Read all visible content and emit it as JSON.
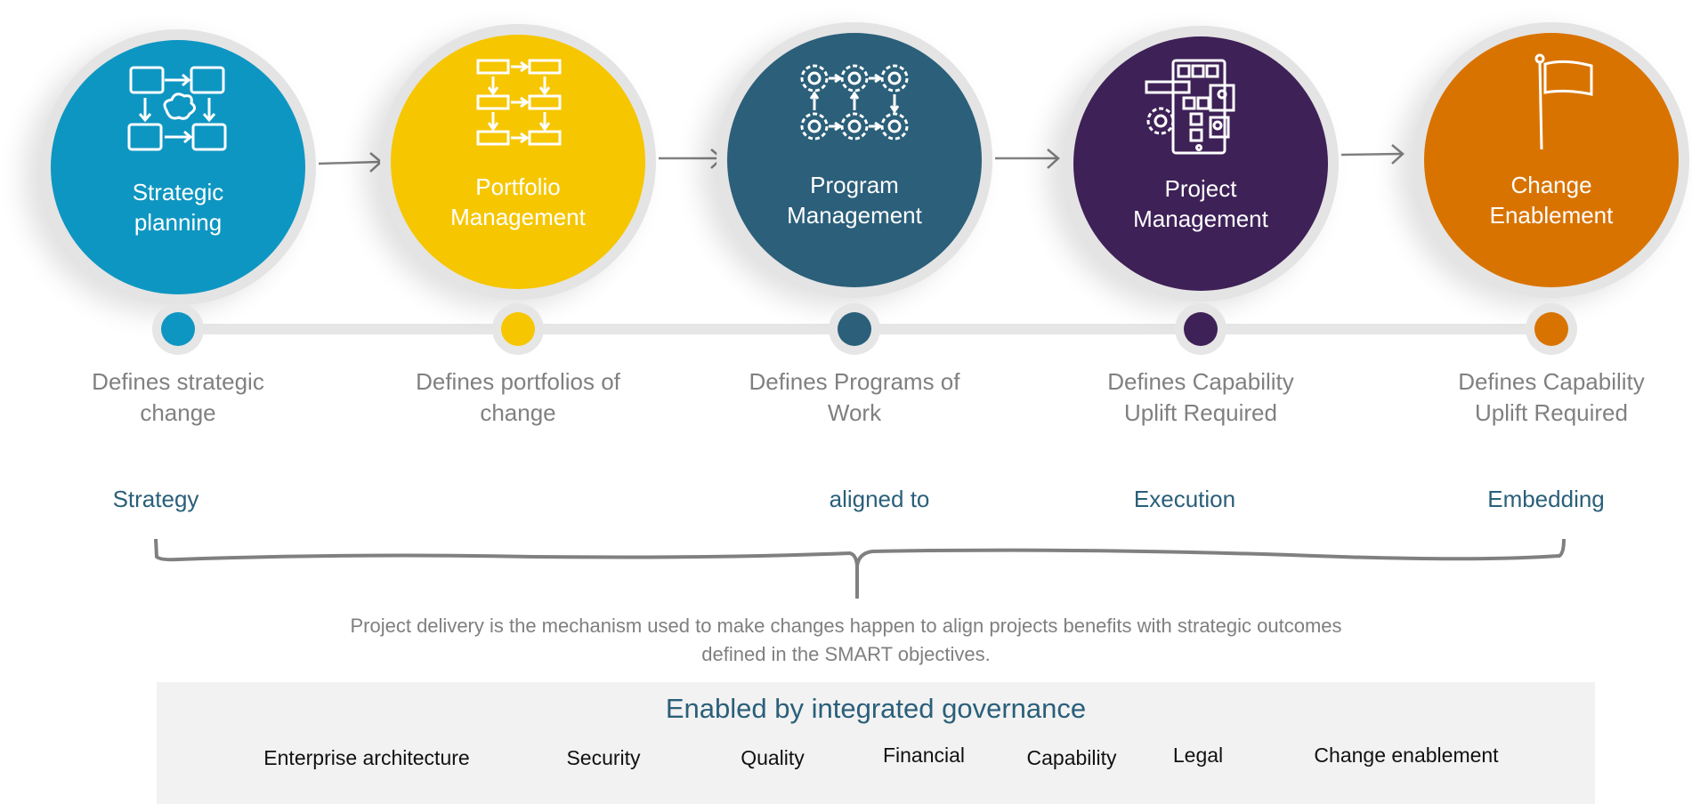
{
  "stages": [
    {
      "title_line1": "Strategic",
      "title_line2": "planning",
      "icon": "planning-flow-icon",
      "color": "#0e96c2",
      "desc_line1": "Defines strategic",
      "desc_line2": "change"
    },
    {
      "title_line1": "Portfolio",
      "title_line2": "Management",
      "icon": "portfolio-flow-icon",
      "color": "#f6c600",
      "desc_line1": "Defines portfolios of",
      "desc_line2": "change"
    },
    {
      "title_line1": "Program",
      "title_line2": "Management",
      "icon": "gears-network-icon",
      "color": "#2b5f7a",
      "desc_line1": "Defines Programs of",
      "desc_line2": "Work"
    },
    {
      "title_line1": "Project",
      "title_line2": "Management",
      "icon": "mobile-app-gear-icon",
      "color": "#3e2157",
      "desc_line1": "Defines Capability",
      "desc_line2": "Uplift Required"
    },
    {
      "title_line1": "Change",
      "title_line2": "Enablement",
      "icon": "flag-icon",
      "color": "#d97300",
      "desc_line1": "Defines Capability",
      "desc_line2": "Uplift Required"
    }
  ],
  "phases": [
    "Strategy",
    "aligned to",
    "Execution",
    "Embedding"
  ],
  "caption_line1": "Project delivery is the mechanism used to make changes happen to align projects benefits with strategic outcomes",
  "caption_line2": "defined in the SMART objectives.",
  "governance": {
    "title": "Enabled by integrated governance",
    "items": [
      "Enterprise architecture",
      "Security",
      "Quality",
      "Financial",
      "Capability",
      "Legal",
      "Change enablement"
    ]
  },
  "colors": {
    "phase_text": "#2a5f7a",
    "muted_text": "#808080",
    "track": "#e6e6e6",
    "panel": "#f2f2f2"
  }
}
